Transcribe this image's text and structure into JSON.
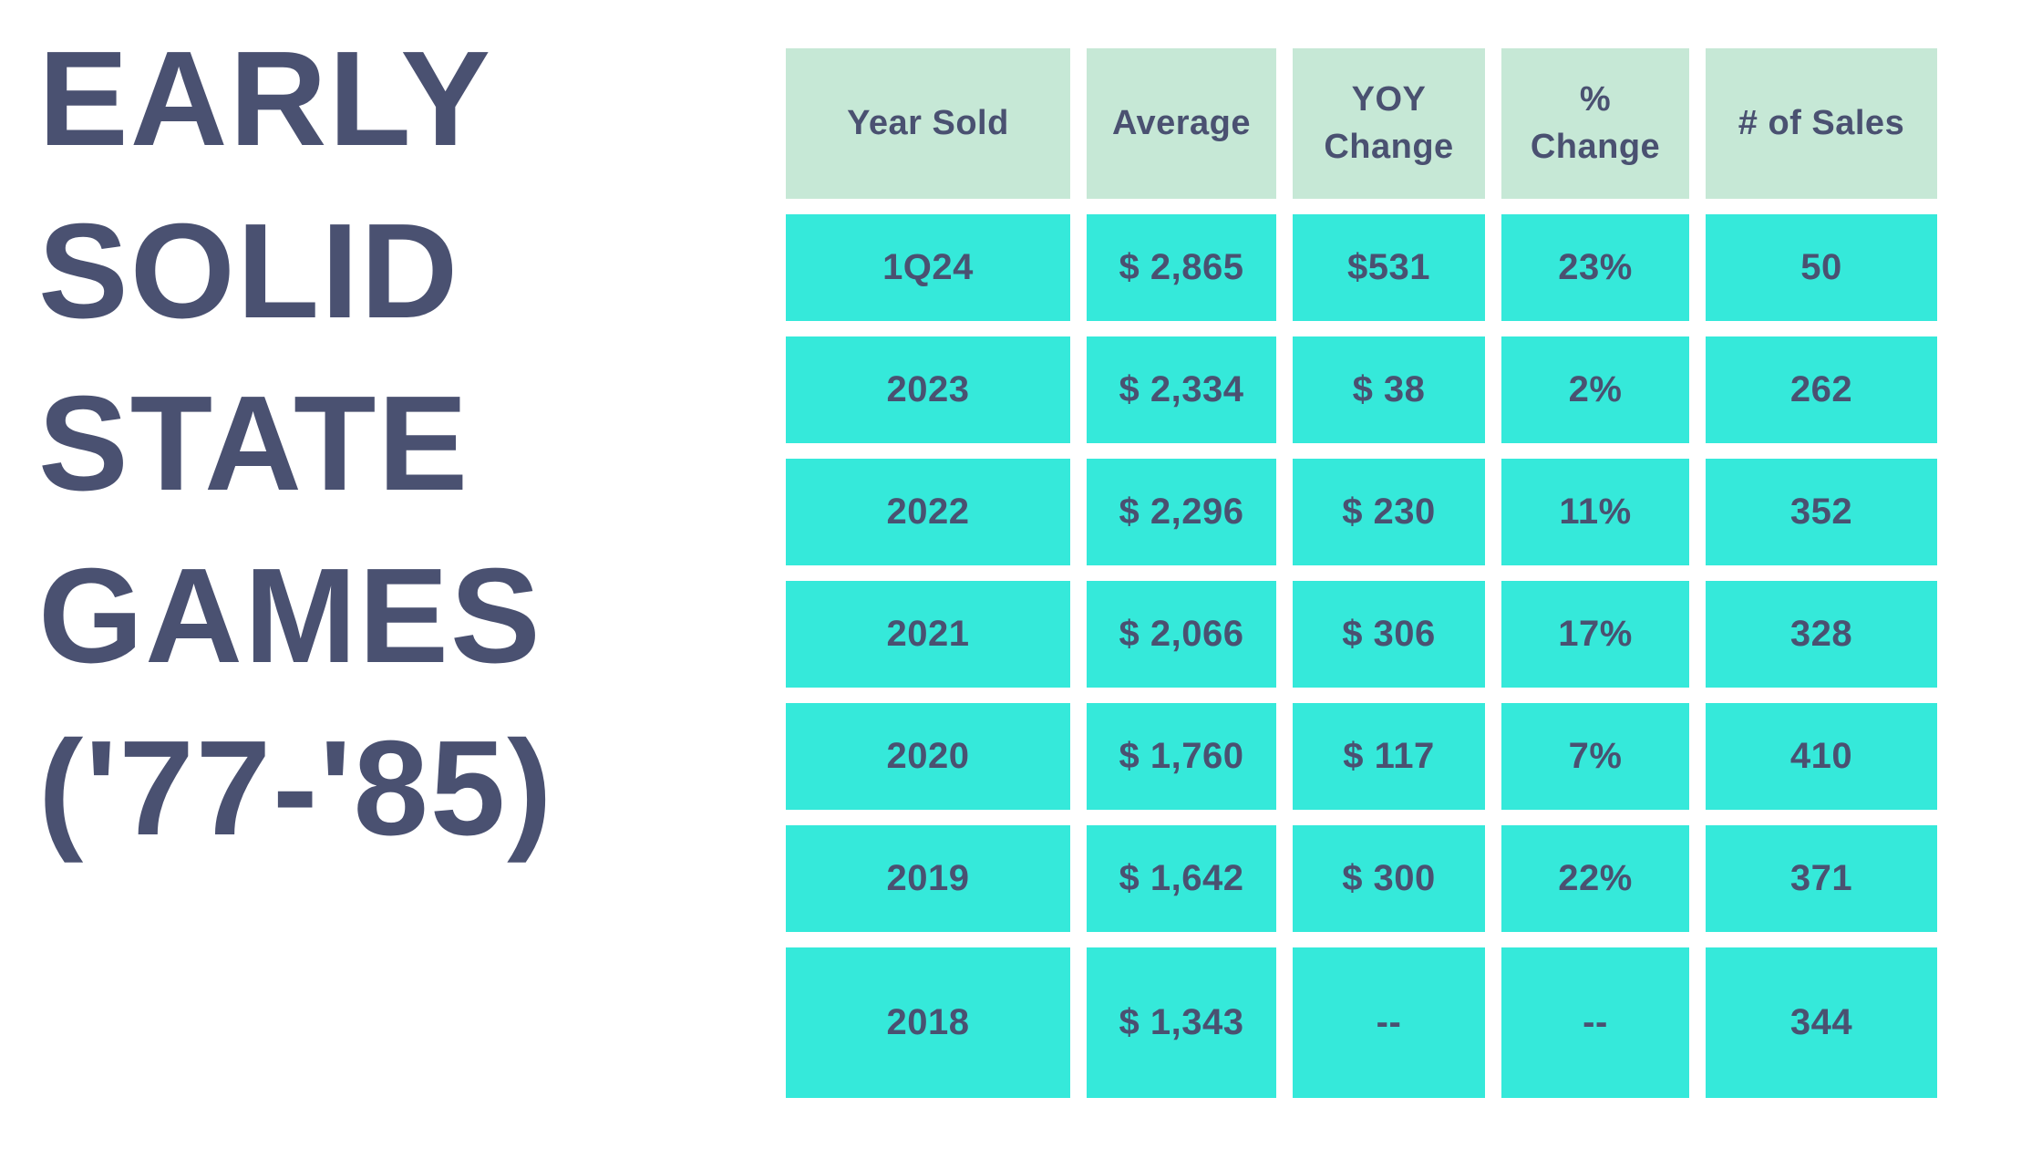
{
  "theme": {
    "bg": "#ffffff",
    "turquoise": "#35e9da",
    "mint": "#c6e8d6",
    "slate": "#4a5171"
  },
  "title": {
    "lines": [
      "EARLY",
      "SOLID",
      "STATE",
      "GAMES",
      "('77-'85)"
    ]
  },
  "chart_data": {
    "type": "table",
    "title": "Early Solid State Games ('77-'85)",
    "columns": [
      "Year Sold",
      "Average",
      "YOY Change",
      "% Change",
      "# of Sales"
    ],
    "rows": [
      [
        "1Q24",
        "$ 2,865",
        "$531",
        "23%",
        "50"
      ],
      [
        "2023",
        "$ 2,334",
        "$ 38",
        "2%",
        "262"
      ],
      [
        "2022",
        "$ 2,296",
        "$ 230",
        "11%",
        "352"
      ],
      [
        "2021",
        "$ 2,066",
        "$ 306",
        "17%",
        "328"
      ],
      [
        "2020",
        "$ 1,760",
        "$ 117",
        "7%",
        "410"
      ],
      [
        "2019",
        "$ 1,642",
        "$ 300",
        "22%",
        "371"
      ],
      [
        "2018",
        "$ 1,343",
        "--",
        "--",
        "344"
      ]
    ]
  },
  "table": {
    "headers": [
      "Year Sold",
      "Average",
      "YOY\nChange",
      "%\nChange",
      "# of Sales"
    ],
    "rows": [
      [
        "1Q24",
        "$ 2,865",
        "$531",
        "23%",
        "50"
      ],
      [
        "2023",
        "$ 2,334",
        "$ 38",
        "2%",
        "262"
      ],
      [
        "2022",
        "$ 2,296",
        "$ 230",
        "11%",
        "352"
      ],
      [
        "2021",
        "$ 2,066",
        "$ 306",
        "17%",
        "328"
      ],
      [
        "2020",
        "$ 1,760",
        "$ 117",
        "7%",
        "410"
      ],
      [
        "2019",
        "$ 1,642",
        "$ 300",
        "22%",
        "371"
      ],
      [
        "2018",
        "$ 1,343",
        "--",
        "--",
        "344"
      ]
    ]
  }
}
